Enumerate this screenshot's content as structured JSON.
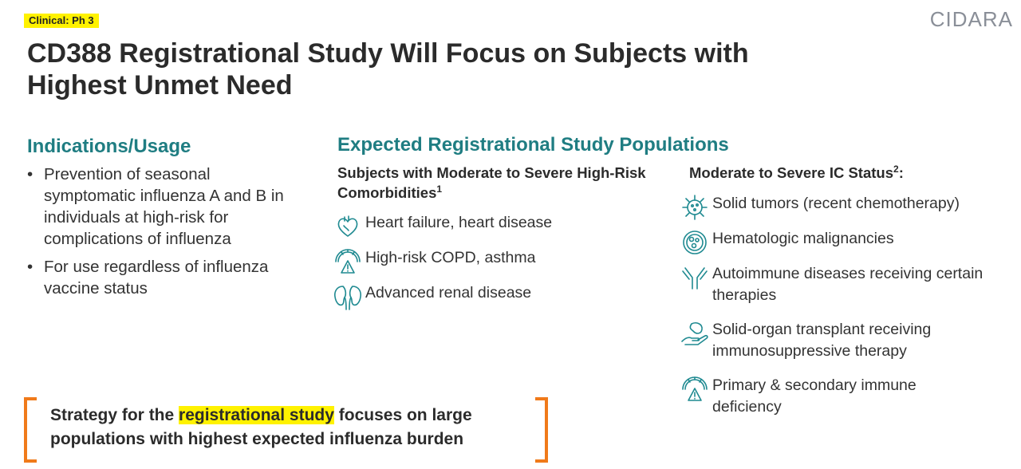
{
  "header": {
    "tag": "Clinical: Ph 3",
    "logo": "CIDARA",
    "title": "CD388 Registrational Study Will Focus on Subjects with Highest Unmet Need"
  },
  "indications": {
    "heading": "Indications/Usage",
    "items": [
      "Prevention of seasonal symptomatic influenza A and B in individuals at high-risk for complications of influenza",
      "For use regardless of influenza vaccine status"
    ]
  },
  "populations": {
    "heading": "Expected Registrational Study Populations",
    "comorbidities": {
      "heading": "Subjects with Moderate to Severe High-Risk Comorbidities",
      "footnote": "1",
      "items": [
        {
          "icon": "heart-icon",
          "label": "Heart failure, heart disease"
        },
        {
          "icon": "lung-gauge-warning-icon",
          "label": "High-risk COPD, asthma"
        },
        {
          "icon": "kidney-icon",
          "label": "Advanced renal disease"
        }
      ]
    },
    "ic_status": {
      "heading": "Moderate to Severe IC Status",
      "footnote": "2",
      "suffix": ":",
      "items": [
        {
          "icon": "tumor-cell-icon",
          "label": "Solid tumors (recent chemotherapy)"
        },
        {
          "icon": "blood-cell-icon",
          "label": "Hematologic malignancies"
        },
        {
          "icon": "antibody-icon",
          "label": "Autoimmune diseases receiving certain therapies"
        },
        {
          "icon": "organ-transplant-icon",
          "label": "Solid-organ transplant receiving immunosuppressive therapy"
        },
        {
          "icon": "gauge-warning-icon",
          "label": "Primary & secondary immune deficiency"
        }
      ]
    }
  },
  "strategy": {
    "before": "Strategy for the ",
    "highlight": "registrational study",
    "after": " focuses on large populations with highest expected influenza burden"
  },
  "colors": {
    "accent": "#1f7d82",
    "highlight": "#fff200",
    "bracket": "#f07a1a"
  }
}
